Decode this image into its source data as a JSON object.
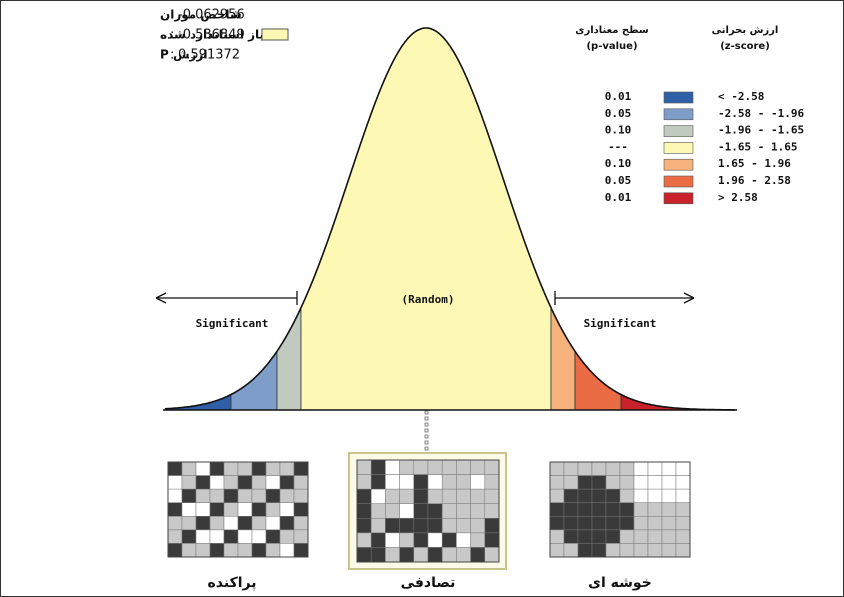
{
  "stats": [
    {
      "label": "شاخص موران",
      "separator": ":",
      "value": "-0.062956"
    },
    {
      "label": "امتیاز استاندارد شده",
      "separator": ":",
      "value": "-0.536849"
    },
    {
      "label": "ارزش P",
      "separator": ":",
      "value": "0.591372"
    }
  ],
  "legend": {
    "p_header": [
      "سطح معناداری",
      "(p-value)"
    ],
    "z_header": [
      "ارزش بحرانی",
      "(z-score)"
    ],
    "rows": [
      {
        "p": "0.01",
        "z": "< -2.58",
        "color": "#2f5fa6"
      },
      {
        "p": "0.05",
        "z": "-2.58 - -1.96",
        "color": "#7e9dc9"
      },
      {
        "p": "0.10",
        "z": "-1.96 - -1.65",
        "color": "#c0cabf"
      },
      {
        "p": "---",
        "z": "-1.65 - 1.65",
        "color": "#fdf9b4"
      },
      {
        "p": "0.10",
        "z": "1.65 - 1.96",
        "color": "#f5b27c"
      },
      {
        "p": "0.05",
        "z": "1.96 - 2.58",
        "color": "#ea6c45"
      },
      {
        "p": "0.01",
        "z": "> 2.58",
        "color": "#c8232b"
      }
    ]
  },
  "curve": {
    "center_label": "(Random)",
    "left_label": "Significant",
    "right_label": "Significant"
  },
  "patterns": [
    "پراکنده",
    "تصادفی",
    "خوشه ای"
  ]
}
